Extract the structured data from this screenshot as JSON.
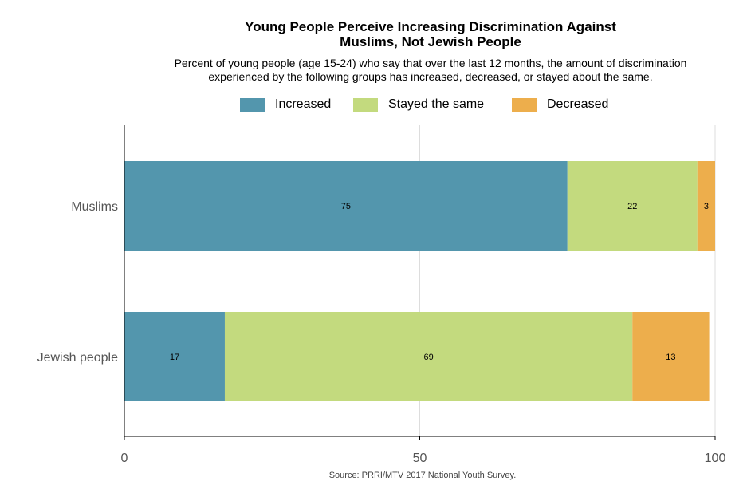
{
  "chart_data": {
    "type": "bar",
    "orientation": "horizontal",
    "stacked": true,
    "title": "Young People Perceive Increasing Discrimination Against Muslims, Not Jewish People",
    "title_lines": [
      "Young People Perceive Increasing Discrimination Against",
      "Muslims, Not Jewish People"
    ],
    "subtitle": "Percent of young people (age 15-24) who say that over the last 12 months, the amount of discrimination experienced by the following groups has increased, decreased, or stayed about the same.",
    "subtitle_lines": [
      "Percent of young people (age 15-24) who say that over the last 12 months, the amount of discrimination",
      "experienced by the following groups has increased, decreased, or stayed about the same."
    ],
    "categories": [
      "Muslims",
      "Jewish people"
    ],
    "series": [
      {
        "name": "Increased",
        "color": "#5396ad",
        "values": [
          75,
          17
        ]
      },
      {
        "name": "Stayed the same",
        "color": "#c3da7e",
        "values": [
          22,
          69
        ]
      },
      {
        "name": "Decreased",
        "color": "#edae4c",
        "values": [
          3,
          13
        ]
      }
    ],
    "xlim": [
      0,
      100
    ],
    "xticks": [
      "0",
      "50",
      "100"
    ],
    "xtick_values": [
      0,
      50,
      100
    ],
    "grid": true,
    "legend": "top-center",
    "source": "Source: PRRI/MTV 2017 National Youth Survey."
  }
}
